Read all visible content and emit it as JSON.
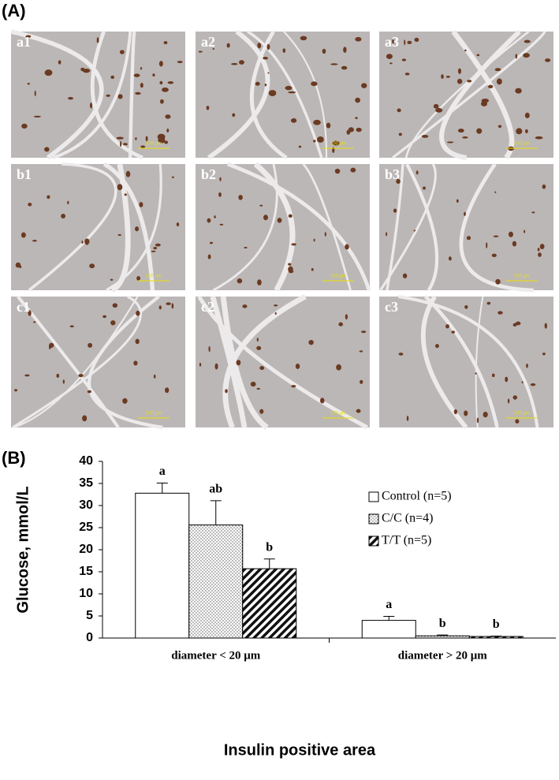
{
  "panel_a": {
    "label": "(A)",
    "images": [
      {
        "label": "a1",
        "scale": "100 μm"
      },
      {
        "label": "a2",
        "scale": "100 μm"
      },
      {
        "label": "a3",
        "scale": "100 μm"
      },
      {
        "label": "b1",
        "scale": "100 μm"
      },
      {
        "label": "b2",
        "scale": "100 μm"
      },
      {
        "label": "b3",
        "scale": "100 μm"
      },
      {
        "label": "c1",
        "scale": "100 μm"
      },
      {
        "label": "c2",
        "scale": "100 μm"
      },
      {
        "label": "c3",
        "scale": "100 μm"
      }
    ]
  },
  "chart_data": {
    "type": "bar",
    "panel_label": "(B)",
    "ylabel": "Glucose, mmol/L",
    "xlabel": "Insulin positive area",
    "categories": [
      "diameter < 20 μm",
      "diameter > 20 μm"
    ],
    "series": [
      {
        "name": "Control (n=5)",
        "color": "#ffffff",
        "pattern": "none",
        "values": [
          32.8,
          4.0
        ],
        "errors": [
          2.3,
          0.9
        ],
        "letters": [
          "a",
          "a"
        ]
      },
      {
        "name": "C/C (n=4)",
        "color": "#ffffff",
        "pattern": "dots",
        "values": [
          25.6,
          0.5
        ],
        "errors": [
          5.5,
          0.2
        ],
        "letters": [
          "ab",
          "b"
        ]
      },
      {
        "name": "T/T (n=5)",
        "color": "#ffffff",
        "pattern": "hatch",
        "values": [
          15.7,
          0.35
        ],
        "errors": [
          2.2,
          0.1
        ],
        "letters": [
          "b",
          "b"
        ]
      }
    ],
    "ylim": [
      0,
      40
    ],
    "yticks": [
      0,
      5,
      10,
      15,
      20,
      25,
      30,
      35,
      40
    ],
    "grid": false,
    "legend": "upper right"
  }
}
